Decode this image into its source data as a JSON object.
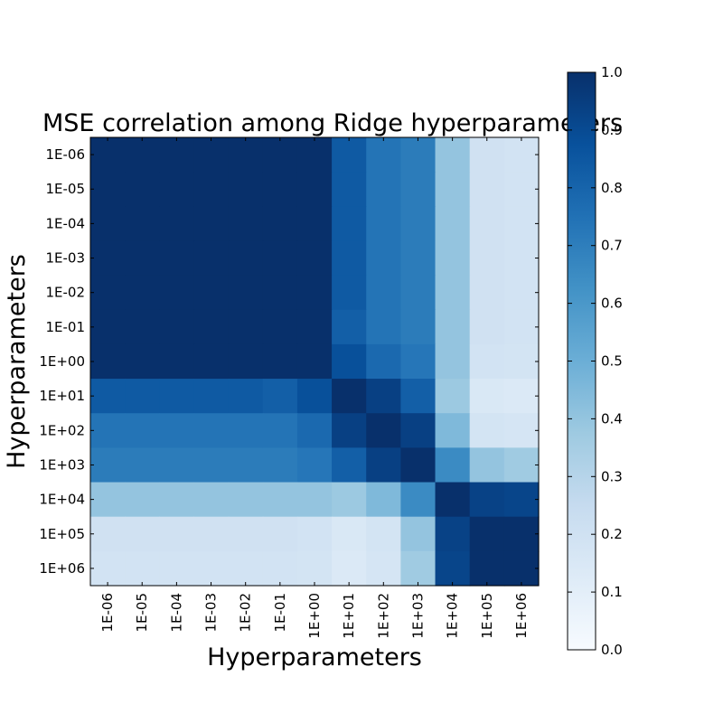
{
  "chart_data": {
    "type": "heatmap",
    "title": "MSE correlation among Ridge hyperparameters",
    "xlabel": "Hyperparameters",
    "ylabel": "Hyperparameters",
    "categories": [
      "1E-06",
      "1E-05",
      "1E-04",
      "1E-03",
      "1E-02",
      "1E-01",
      "1E+00",
      "1E+01",
      "1E+02",
      "1E+03",
      "1E+04",
      "1E+05",
      "1E+06"
    ],
    "values": [
      [
        1.0,
        1.0,
        1.0,
        1.0,
        1.0,
        1.0,
        1.0,
        0.84,
        0.74,
        0.71,
        0.4,
        0.2,
        0.19
      ],
      [
        1.0,
        1.0,
        1.0,
        1.0,
        1.0,
        1.0,
        1.0,
        0.84,
        0.74,
        0.71,
        0.4,
        0.2,
        0.19
      ],
      [
        1.0,
        1.0,
        1.0,
        1.0,
        1.0,
        1.0,
        1.0,
        0.84,
        0.74,
        0.71,
        0.4,
        0.2,
        0.19
      ],
      [
        1.0,
        1.0,
        1.0,
        1.0,
        1.0,
        1.0,
        1.0,
        0.84,
        0.74,
        0.71,
        0.4,
        0.2,
        0.19
      ],
      [
        1.0,
        1.0,
        1.0,
        1.0,
        1.0,
        1.0,
        1.0,
        0.84,
        0.74,
        0.71,
        0.4,
        0.2,
        0.19
      ],
      [
        1.0,
        1.0,
        1.0,
        1.0,
        1.0,
        1.0,
        1.0,
        0.82,
        0.74,
        0.71,
        0.4,
        0.2,
        0.19
      ],
      [
        1.0,
        1.0,
        1.0,
        1.0,
        1.0,
        1.0,
        1.0,
        0.88,
        0.78,
        0.73,
        0.4,
        0.19,
        0.18
      ],
      [
        0.84,
        0.84,
        0.84,
        0.84,
        0.84,
        0.82,
        0.88,
        1.0,
        0.94,
        0.82,
        0.38,
        0.15,
        0.14
      ],
      [
        0.74,
        0.74,
        0.74,
        0.74,
        0.74,
        0.74,
        0.78,
        0.94,
        1.0,
        0.94,
        0.45,
        0.18,
        0.17
      ],
      [
        0.71,
        0.71,
        0.71,
        0.71,
        0.71,
        0.71,
        0.73,
        0.82,
        0.94,
        1.0,
        0.65,
        0.4,
        0.37
      ],
      [
        0.4,
        0.4,
        0.4,
        0.4,
        0.4,
        0.4,
        0.4,
        0.38,
        0.45,
        0.65,
        1.0,
        0.93,
        0.92
      ],
      [
        0.2,
        0.2,
        0.2,
        0.2,
        0.2,
        0.2,
        0.19,
        0.15,
        0.18,
        0.4,
        0.93,
        1.0,
        1.0
      ],
      [
        0.19,
        0.19,
        0.19,
        0.19,
        0.19,
        0.19,
        0.18,
        0.14,
        0.17,
        0.37,
        0.92,
        1.0,
        1.0
      ]
    ],
    "colorbar": {
      "colormap": "Blues",
      "range": [
        0.0,
        1.0
      ],
      "ticks": [
        "0.0",
        "0.1",
        "0.2",
        "0.3",
        "0.4",
        "0.5",
        "0.6",
        "0.7",
        "0.8",
        "0.9",
        "1.0"
      ]
    }
  }
}
